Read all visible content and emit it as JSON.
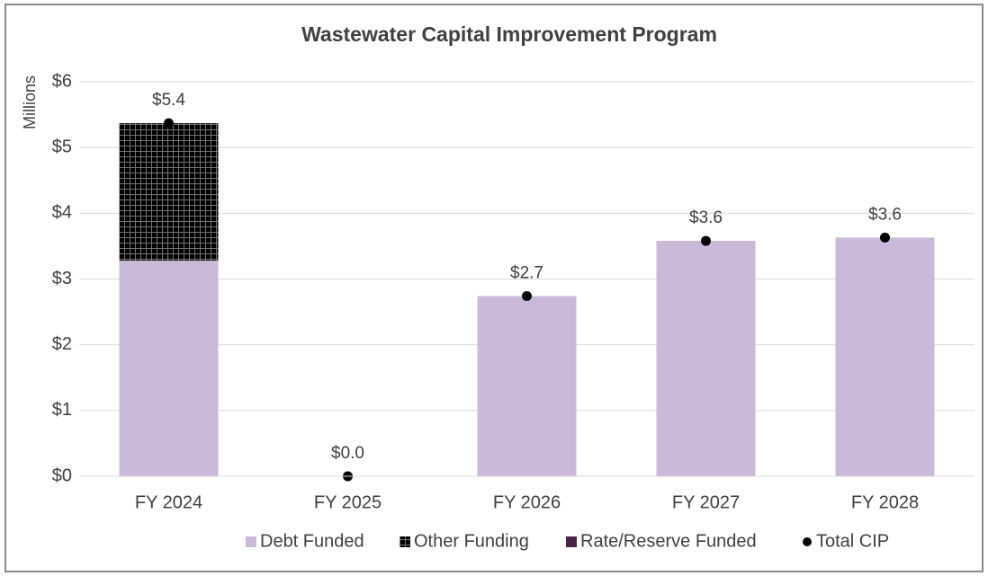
{
  "chart_data": {
    "type": "bar",
    "stacked": true,
    "title": "Wastewater Capital Improvement Program",
    "y_label": "Millions",
    "categories": [
      "FY 2024",
      "FY 2025",
      "FY 2026",
      "FY 2027",
      "FY 2028"
    ],
    "series": [
      {
        "name": "Debt Funded",
        "type": "bar",
        "color": "#ccb8d8",
        "values": [
          3.28,
          0,
          2.74,
          3.58,
          3.63
        ]
      },
      {
        "name": "Other Funding",
        "type": "bar",
        "color": "#f0822a",
        "values": [
          2.09,
          0,
          0,
          0,
          0
        ]
      },
      {
        "name": "Rate/Reserve Funded",
        "type": "bar",
        "color": "#4a2448",
        "values": [
          0,
          0,
          0,
          0,
          0
        ]
      },
      {
        "name": "Total CIP",
        "type": "scatter",
        "color": "#000000",
        "values": [
          5.37,
          0,
          2.74,
          3.58,
          3.63
        ],
        "value_labels": [
          "$5.4",
          "$0.0",
          "$2.7",
          "$3.6",
          "$3.6"
        ]
      }
    ],
    "ylim": [
      0,
      6
    ],
    "yticks": [
      {
        "value": 0,
        "label": "$0"
      },
      {
        "value": 1,
        "label": "$1"
      },
      {
        "value": 2,
        "label": "$2"
      },
      {
        "value": 3,
        "label": "$3"
      },
      {
        "value": 4,
        "label": "$4"
      },
      {
        "value": 5,
        "label": "$5"
      },
      {
        "value": 6,
        "label": "$6"
      }
    ],
    "grid": true,
    "legend": "bottom"
  }
}
